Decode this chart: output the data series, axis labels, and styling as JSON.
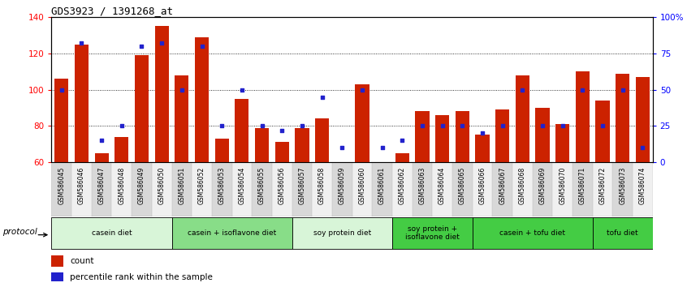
{
  "title": "GDS3923 / 1391268_at",
  "samples": [
    "GSM586045",
    "GSM586046",
    "GSM586047",
    "GSM586048",
    "GSM586049",
    "GSM586050",
    "GSM586051",
    "GSM586052",
    "GSM586053",
    "GSM586054",
    "GSM586055",
    "GSM586056",
    "GSM586057",
    "GSM586058",
    "GSM586059",
    "GSM586060",
    "GSM586061",
    "GSM586062",
    "GSM586063",
    "GSM586064",
    "GSM586065",
    "GSM586066",
    "GSM586067",
    "GSM586068",
    "GSM586069",
    "GSM586070",
    "GSM586071",
    "GSM586072",
    "GSM586073",
    "GSM586074"
  ],
  "count": [
    106,
    125,
    65,
    74,
    119,
    135,
    108,
    129,
    73,
    95,
    79,
    71,
    79,
    84,
    60,
    103,
    60,
    65,
    88,
    86,
    88,
    75,
    89,
    108,
    90,
    81,
    110,
    94,
    109,
    107
  ],
  "percentile": [
    50,
    82,
    15,
    25,
    80,
    82,
    50,
    80,
    25,
    50,
    25,
    22,
    25,
    45,
    10,
    50,
    10,
    15,
    25,
    25,
    25,
    20,
    25,
    50,
    25,
    25,
    50,
    25,
    50,
    10
  ],
  "ylim_left": [
    60,
    140
  ],
  "ylim_right": [
    0,
    100
  ],
  "yticks_left": [
    60,
    80,
    100,
    120,
    140
  ],
  "yticks_right": [
    0,
    25,
    50,
    75,
    100
  ],
  "ytick_labels_right": [
    "0",
    "25",
    "50",
    "75",
    "100%"
  ],
  "bar_color": "#cc2200",
  "percentile_color": "#2222cc",
  "groups": [
    {
      "label": "casein diet",
      "start": 0,
      "end": 5,
      "color": "#d8f5d8"
    },
    {
      "label": "casein + isoflavone diet",
      "start": 6,
      "end": 11,
      "color": "#88dd88"
    },
    {
      "label": "soy protein diet",
      "start": 12,
      "end": 16,
      "color": "#d8f5d8"
    },
    {
      "label": "soy protein +\nisoflavone diet",
      "start": 17,
      "end": 20,
      "color": "#44cc44"
    },
    {
      "label": "casein + tofu diet",
      "start": 21,
      "end": 26,
      "color": "#44cc44"
    },
    {
      "label": "tofu diet",
      "start": 27,
      "end": 29,
      "color": "#44cc44"
    }
  ],
  "legend_count_color": "#cc2200",
  "legend_percentile_color": "#2222cc",
  "bg_color": "#ffffff",
  "grid_color": "#000000",
  "protocol_label": "protocol"
}
